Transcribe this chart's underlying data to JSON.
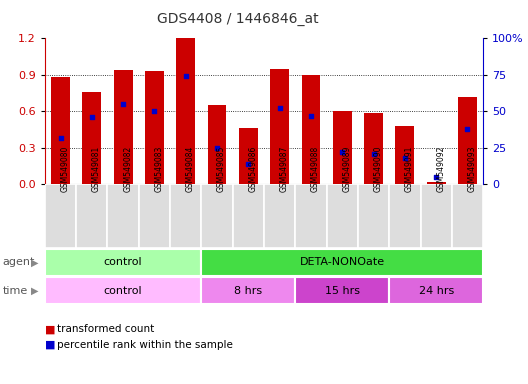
{
  "title": "GDS4408 / 1446846_at",
  "samples": [
    "GSM549080",
    "GSM549081",
    "GSM549082",
    "GSM549083",
    "GSM549084",
    "GSM549085",
    "GSM549086",
    "GSM549087",
    "GSM549088",
    "GSM549089",
    "GSM549090",
    "GSM549091",
    "GSM549092",
    "GSM549093"
  ],
  "transformed_count": [
    0.88,
    0.76,
    0.94,
    0.93,
    1.2,
    0.65,
    0.46,
    0.95,
    0.9,
    0.6,
    0.59,
    0.48,
    0.02,
    0.72
  ],
  "percentile_rank": [
    32,
    46,
    55,
    50,
    74,
    25,
    14,
    52,
    47,
    22,
    21,
    18,
    5,
    38
  ],
  "ylim_left": [
    0,
    1.2
  ],
  "ylim_right": [
    0,
    100
  ],
  "yticks_left": [
    0,
    0.3,
    0.6,
    0.9,
    1.2
  ],
  "yticks_right": [
    0,
    25,
    50,
    75,
    100
  ],
  "agent_groups": [
    {
      "label": "control",
      "start": 0,
      "end": 5,
      "color": "#aaffaa"
    },
    {
      "label": "DETA-NONOate",
      "start": 5,
      "end": 14,
      "color": "#44dd44"
    }
  ],
  "time_groups": [
    {
      "label": "control",
      "start": 0,
      "end": 5,
      "color": "#ffbbff"
    },
    {
      "label": "8 hrs",
      "start": 5,
      "end": 8,
      "color": "#ee88ee"
    },
    {
      "label": "15 hrs",
      "start": 8,
      "end": 11,
      "color": "#cc44cc"
    },
    {
      "label": "24 hrs",
      "start": 11,
      "end": 14,
      "color": "#dd66dd"
    }
  ],
  "bar_color": "#cc0000",
  "dot_color": "#0000cc",
  "bar_width": 0.6,
  "bg_color": "#ffffff",
  "left_axis_color": "#cc0000",
  "right_axis_color": "#0000cc",
  "sample_bg_color": "#dddddd",
  "separator_color": "#aaaaaa"
}
